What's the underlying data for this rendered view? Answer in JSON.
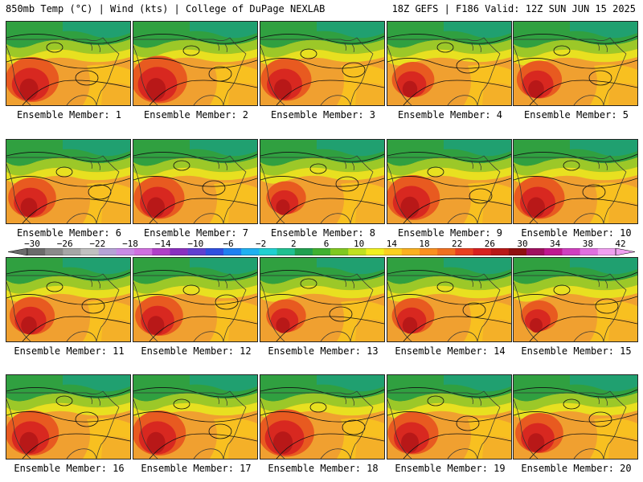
{
  "header": {
    "left": "850mb Temp (°C) | Wind (kts) | College of DuPage NEXLAB",
    "right": "18Z GEFS | F186 Valid: 12Z SUN JUN 15 2025"
  },
  "members": [
    {
      "label": "Ensemble Member: 1",
      "heat": 0.8
    },
    {
      "label": "Ensemble Member: 2",
      "heat": 0.85
    },
    {
      "label": "Ensemble Member: 3",
      "heat": 0.75
    },
    {
      "label": "Ensemble Member: 4",
      "heat": 0.6
    },
    {
      "label": "Ensemble Member: 5",
      "heat": 0.65
    },
    {
      "label": "Ensemble Member: 6",
      "heat": 0.7
    },
    {
      "label": "Ensemble Member: 7",
      "heat": 0.75
    },
    {
      "label": "Ensemble Member: 8",
      "heat": 0.55
    },
    {
      "label": "Ensemble Member: 9",
      "heat": 0.8
    },
    {
      "label": "Ensemble Member: 10",
      "heat": 0.75
    },
    {
      "label": "Ensemble Member: 11",
      "heat": 0.65
    },
    {
      "label": "Ensemble Member: 12",
      "heat": 0.7
    },
    {
      "label": "Ensemble Member: 13",
      "heat": 0.55
    },
    {
      "label": "Ensemble Member: 14",
      "heat": 0.6
    },
    {
      "label": "Ensemble Member: 15",
      "heat": 0.5
    },
    {
      "label": "Ensemble Member: 16",
      "heat": 0.8
    },
    {
      "label": "Ensemble Member: 17",
      "heat": 0.8
    },
    {
      "label": "Ensemble Member: 18",
      "heat": 0.85
    },
    {
      "label": "Ensemble Member: 19",
      "heat": 0.75
    },
    {
      "label": "Ensemble Member: 20",
      "heat": 0.7
    }
  ],
  "colorbar": {
    "labels": [
      "−30",
      "−26",
      "−22",
      "−18",
      "−14",
      "−10",
      "−6",
      "−2",
      "2",
      "6",
      "10",
      "14",
      "18",
      "22",
      "26",
      "30",
      "34",
      "38",
      "42"
    ],
    "colors": [
      "#6b6b6b",
      "#8a8a8a",
      "#a6a6a6",
      "#c0c0c0",
      "#b5a3d6",
      "#c98ce6",
      "#d070e0",
      "#b040c8",
      "#8a30c0",
      "#6040d0",
      "#3050e0",
      "#2080f0",
      "#20b0f0",
      "#20d0d0",
      "#20c090",
      "#20a050",
      "#40b030",
      "#80c820",
      "#c0e020",
      "#f0f020",
      "#f8d020",
      "#f8b020",
      "#f89020",
      "#f07020",
      "#e84020",
      "#d82020",
      "#b81818",
      "#901010",
      "#a01060",
      "#c01890",
      "#d040c0",
      "#e070e0",
      "#f0a0f0"
    ]
  }
}
